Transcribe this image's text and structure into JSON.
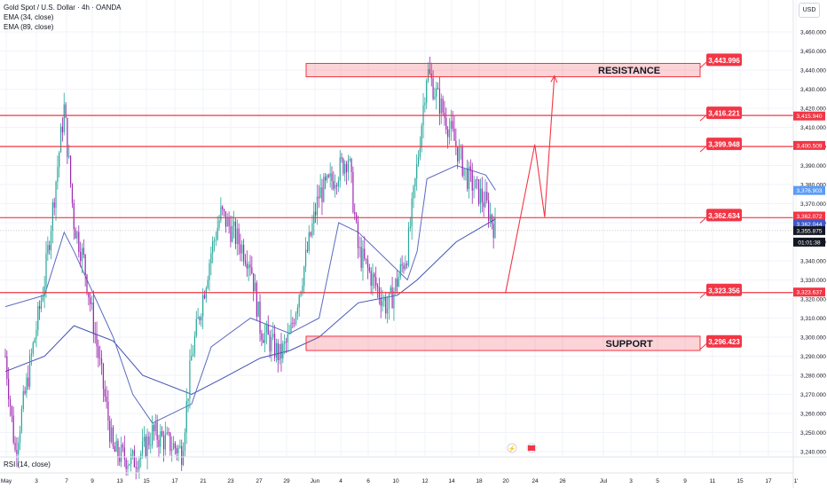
{
  "header": {
    "symbol": "Gold Spot / U.S. Dollar · 4h · OANDA",
    "ema1": "EMA (34, close)",
    "ema2": "EMA (89, close)",
    "currency": "USD"
  },
  "rsi_label": "RSI (14, close)",
  "chart_data": {
    "type": "candlestick",
    "title": "Gold Spot / U.S. Dollar · 4h · OANDA",
    "y_axis": {
      "min": 3240,
      "max": 3460,
      "step": 10,
      "tick_labels": [
        "3,460.000",
        "3,450.000",
        "3,440.000",
        "3,430.000",
        "3,420.000",
        "3,410.000",
        "3,400.000",
        "3,390.000",
        "3,380.000",
        "3,370.000",
        "3,360.000",
        "3,350.000",
        "3,340.000",
        "3,330.000",
        "3,320.000",
        "3,310.000",
        "3,300.000",
        "3,290.000",
        "3,280.000",
        "3,270.000",
        "3,260.000",
        "3,250.000",
        "3,240.000"
      ]
    },
    "x_axis": {
      "tick_labels": [
        "May",
        "3",
        "7",
        "9",
        "13",
        "15",
        "17",
        "21",
        "23",
        "27",
        "29",
        "Jun",
        "4",
        "6",
        "10",
        "12",
        "14",
        "18",
        "20",
        "24",
        "26",
        "Jul",
        "3",
        "5",
        "9",
        "11",
        "15",
        "17",
        "1'"
      ]
    },
    "zones": [
      {
        "label": "RESISTANCE",
        "low": 3436.5,
        "high": 3443.5
      },
      {
        "label": "SUPPORT",
        "low": 3293.0,
        "high": 3300.5
      }
    ],
    "levels": [
      3443.996,
      3416.221,
      3399.948,
      3362.634,
      3323.356,
      3296.423
    ],
    "level_labels": [
      "3,443.996",
      "3,416.221",
      "3,399.948",
      "3,362.634",
      "3,323.356",
      "3,296.423"
    ],
    "axis_markers": [
      {
        "value": 3415.94,
        "label": "3,415.940",
        "color": "#f23645"
      },
      {
        "value": 3400.509,
        "label": "3,400.509",
        "color": "#f23645"
      },
      {
        "value": 3376.903,
        "label": "3,376.903",
        "color": "#5b9cf6"
      },
      {
        "value": 3362.072,
        "label": "3,362.072",
        "color": "#f23645"
      },
      {
        "value": 3362.044,
        "label": "3,362.044",
        "color": "#3d58c9"
      },
      {
        "value": 3355.875,
        "label": "3,355.875",
        "color": "#131722"
      },
      {
        "value": 3323.637,
        "label": "3,323.637",
        "color": "#f23645"
      }
    ],
    "countdown": "01:01:38",
    "projection": [
      {
        "date": "Jun 21",
        "value": 3323
      },
      {
        "date": "Jun 24",
        "value": 3401
      },
      {
        "date": "Jun 25",
        "value": 3363
      },
      {
        "date": "Jun 26",
        "value": 3437
      }
    ],
    "price_path": [
      {
        "date": "May 1",
        "value": 3290
      },
      {
        "date": "May 2",
        "value": 3240
      },
      {
        "date": "May 5",
        "value": 3330
      },
      {
        "date": "May 7",
        "value": 3420
      },
      {
        "date": "May 8",
        "value": 3360
      },
      {
        "date": "May 9",
        "value": 3340
      },
      {
        "date": "May 12",
        "value": 3240
      },
      {
        "date": "May 14",
        "value": 3235
      },
      {
        "date": "May 15",
        "value": 3240
      },
      {
        "date": "May 16",
        "value": 3250
      },
      {
        "date": "May 19",
        "value": 3240
      },
      {
        "date": "May 20",
        "value": 3290
      },
      {
        "date": "May 22",
        "value": 3345
      },
      {
        "date": "May 23",
        "value": 3365
      },
      {
        "date": "May 26",
        "value": 3340
      },
      {
        "date": "May 27",
        "value": 3305
      },
      {
        "date": "May 29",
        "value": 3290
      },
      {
        "date": "May 30",
        "value": 3300
      },
      {
        "date": "Jun 2",
        "value": 3375
      },
      {
        "date": "Jun 3",
        "value": 3380
      },
      {
        "date": "Jun 5",
        "value": 3395
      },
      {
        "date": "Jun 6",
        "value": 3345
      },
      {
        "date": "Jun 9",
        "value": 3315
      },
      {
        "date": "Jun 10",
        "value": 3330
      },
      {
        "date": "Jun 11",
        "value": 3345
      },
      {
        "date": "Jun 12",
        "value": 3390
      },
      {
        "date": "Jun 13",
        "value": 3440
      },
      {
        "date": "Jun 16",
        "value": 3400
      },
      {
        "date": "Jun 17",
        "value": 3385
      },
      {
        "date": "Jun 19",
        "value": 3370
      },
      {
        "date": "Jun 20",
        "value": 3356
      }
    ],
    "ema_34_path": [
      {
        "date": "May 1",
        "value": 3316
      },
      {
        "date": "May 5",
        "value": 3322
      },
      {
        "date": "May 7",
        "value": 3355
      },
      {
        "date": "May 8",
        "value": 3345
      },
      {
        "date": "May 12",
        "value": 3300
      },
      {
        "date": "May 14",
        "value": 3270
      },
      {
        "date": "May 16",
        "value": 3255
      },
      {
        "date": "May 20",
        "value": 3265
      },
      {
        "date": "May 22",
        "value": 3295
      },
      {
        "date": "May 26",
        "value": 3310
      },
      {
        "date": "May 30",
        "value": 3302
      },
      {
        "date": "Jun 2",
        "value": 3310
      },
      {
        "date": "Jun 4",
        "value": 3360
      },
      {
        "date": "Jun 6",
        "value": 3355
      },
      {
        "date": "Jun 9",
        "value": 3340
      },
      {
        "date": "Jun 11",
        "value": 3330
      },
      {
        "date": "Jun 12",
        "value": 3345
      },
      {
        "date": "Jun 13",
        "value": 3383
      },
      {
        "date": "Jun 16",
        "value": 3390
      },
      {
        "date": "Jun 19",
        "value": 3385
      },
      {
        "date": "Jun 20",
        "value": 3377
      }
    ],
    "ema_89_path": [
      {
        "date": "May 1",
        "value": 3282
      },
      {
        "date": "May 5",
        "value": 3290
      },
      {
        "date": "May 8",
        "value": 3306
      },
      {
        "date": "May 12",
        "value": 3298
      },
      {
        "date": "May 15",
        "value": 3280
      },
      {
        "date": "May 20",
        "value": 3270
      },
      {
        "date": "May 23",
        "value": 3278
      },
      {
        "date": "May 27",
        "value": 3289
      },
      {
        "date": "May 30",
        "value": 3293
      },
      {
        "date": "Jun 2",
        "value": 3300
      },
      {
        "date": "Jun 6",
        "value": 3318
      },
      {
        "date": "Jun 10",
        "value": 3322
      },
      {
        "date": "Jun 12",
        "value": 3330
      },
      {
        "date": "Jun 16",
        "value": 3350
      },
      {
        "date": "Jun 20",
        "value": 3362
      }
    ]
  }
}
